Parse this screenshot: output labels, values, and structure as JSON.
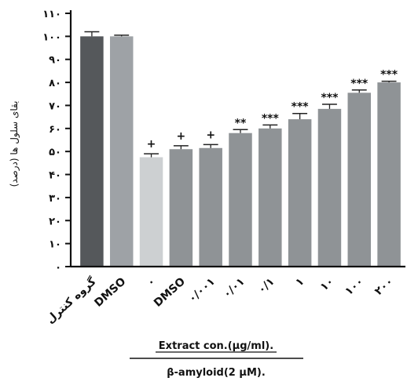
{
  "chart_data": {
    "type": "bar",
    "ylabel": "بقای سلول ها (درصد)",
    "ylim": [
      0,
      110
    ],
    "yticks": [
      0,
      10,
      20,
      30,
      40,
      50,
      60,
      70,
      80,
      90,
      100,
      110
    ],
    "ytick_labels": [
      "۰",
      "۱۰",
      "۲۰",
      "۳۰",
      "۴۰",
      "۵۰",
      "۶۰",
      "۷۰",
      "۸۰",
      "۹۰",
      "۱۰۰",
      "۱۱۰"
    ],
    "categories": [
      "گروه کنترل",
      "DMSO",
      "۰",
      "DMSO",
      "۰/۰۰۱",
      "۰/۰۱",
      "۰/۱",
      "۱",
      "۱۰",
      "۱۰۰",
      "۲۰۰"
    ],
    "values": [
      100,
      100,
      47.5,
      51,
      51.5,
      58,
      60,
      64,
      68.5,
      75.5,
      80
    ],
    "errors": [
      2,
      0.5,
      1.5,
      1.5,
      1.5,
      1.5,
      1.5,
      2.5,
      2,
      1.2,
      0.5
    ],
    "colors": [
      "#55585b",
      "#9ea2a6",
      "#cdd0d2",
      "#8f9396",
      "#8f9396",
      "#8f9396",
      "#8f9396",
      "#8f9396",
      "#8f9396",
      "#8f9396",
      "#8f9396"
    ],
    "significance": [
      "",
      "",
      "+",
      "+",
      "+",
      "**",
      "***",
      "***",
      "***",
      "***",
      "***"
    ],
    "xlabel_group1": "Extract con.(μg/ml).",
    "xlabel_group2": "β-amyloid(2 μM).",
    "grid": false
  }
}
